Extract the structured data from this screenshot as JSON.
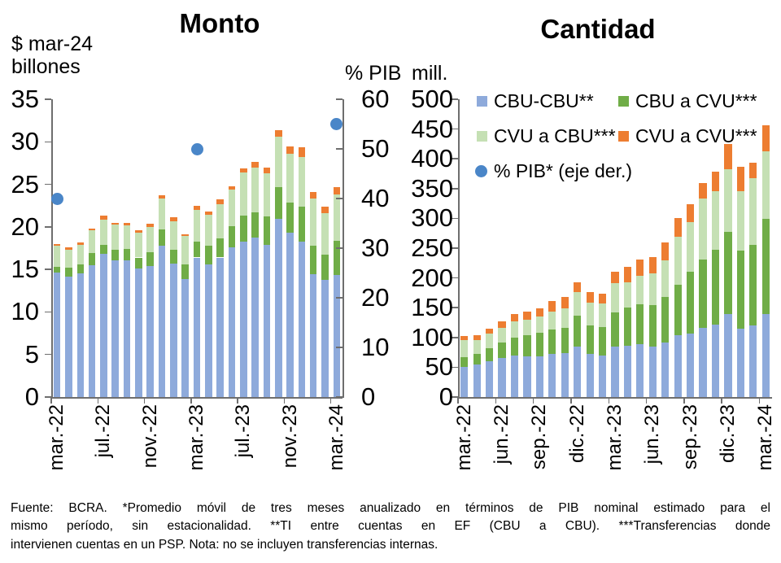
{
  "page": {
    "background": "#ffffff"
  },
  "colors": {
    "cbu_cbu": "#8EAADB",
    "cbu_a_cvu": "#70AD47",
    "cvu_a_cbu": "#C5E0B4",
    "cvu_a_cvu": "#ED7D31",
    "pib_dot": "#4A86C8",
    "axis": "#6E6E6E",
    "text": "#000000"
  },
  "legend": {
    "items": [
      {
        "label": "CBU-CBU**",
        "color": "#8EAADB",
        "shape": "square"
      },
      {
        "label": "CBU a CVU***",
        "color": "#70AD47",
        "shape": "square"
      },
      {
        "label": "CVU a CBU***",
        "color": "#C5E0B4",
        "shape": "square"
      },
      {
        "label": "CVU a CVU***",
        "color": "#ED7D31",
        "shape": "square"
      },
      {
        "label": "% PIB* (eje der.)",
        "color": "#4A86C8",
        "shape": "circle"
      }
    ]
  },
  "chart_data": [
    {
      "id": "monto",
      "type": "stacked-bar",
      "title": "Monto",
      "y_axis_unit": [
        "$ mar-24",
        "billones"
      ],
      "y2_axis_unit": "% PIB",
      "ylim": [
        0,
        35
      ],
      "y_ticks": [
        0,
        5,
        10,
        15,
        20,
        25,
        30,
        35
      ],
      "y2lim": [
        0,
        60
      ],
      "y2_ticks": [
        0,
        10,
        20,
        30,
        40,
        50,
        60
      ],
      "grid": false,
      "label_every": 4,
      "categories": [
        "mar.-22",
        "abr.-22",
        "may.-22",
        "jun.-22",
        "jul.-22",
        "ago.-22",
        "sep.-22",
        "oct.-22",
        "nov.-22",
        "dic.-22",
        "ene.-23",
        "feb.-23",
        "mar.-23",
        "abr.-23",
        "may.-23",
        "jun.-23",
        "jul.-23",
        "ago.-23",
        "sep.-23",
        "oct.-23",
        "nov.-23",
        "dic.-23",
        "ene.-24",
        "feb.-24",
        "mar.-24"
      ],
      "x_tick_labels": [
        "mar.-22",
        "jul.-22",
        "nov.-22",
        "mar.-23",
        "jul.-23",
        "nov.-23",
        "mar.-24"
      ],
      "series": [
        {
          "name": "CBU-CBU**",
          "color": "#8EAADB",
          "values": [
            14.6,
            14.2,
            14.5,
            15.5,
            16.8,
            16.1,
            16.1,
            15.1,
            15.4,
            17.8,
            15.7,
            13.9,
            16.4,
            15.6,
            16.4,
            17.6,
            18.3,
            18.7,
            17.9,
            20.9,
            19.3,
            18.3,
            14.4,
            13.8,
            14.3
          ]
        },
        {
          "name": "CBU a CVU***",
          "color": "#70AD47",
          "values": [
            0.7,
            1.0,
            1.1,
            1.4,
            1.1,
            1.2,
            1.3,
            1.3,
            1.6,
            1.9,
            1.6,
            1.7,
            1.9,
            2.2,
            2.2,
            2.5,
            3.0,
            3.0,
            3.3,
            3.8,
            3.6,
            4.1,
            3.4,
            2.9,
            4.1
          ]
        },
        {
          "name": "CVU a CBU***",
          "color": "#C5E0B4",
          "values": [
            2.5,
            2.1,
            2.3,
            2.7,
            2.9,
            3.0,
            2.8,
            2.9,
            3.0,
            3.6,
            3.4,
            3.3,
            3.7,
            3.6,
            4.1,
            4.3,
            5.1,
            5.3,
            5.1,
            5.9,
            5.7,
            5.8,
            5.5,
            4.9,
            5.4
          ]
        },
        {
          "name": "CVU a CVU***",
          "color": "#ED7D31",
          "values": [
            0.2,
            0.3,
            0.3,
            0.2,
            0.5,
            0.2,
            0.3,
            0.3,
            0.4,
            0.4,
            0.4,
            0.2,
            0.5,
            0.4,
            0.5,
            0.4,
            0.5,
            0.6,
            0.7,
            0.8,
            0.9,
            1.2,
            0.8,
            0.8,
            0.9
          ]
        }
      ],
      "dots": {
        "name": "% PIB* (eje der.)",
        "axis": "y2",
        "color": "#4A86C8",
        "points": [
          {
            "category": "mar.-22",
            "value": 40
          },
          {
            "category": "mar.-23",
            "value": 50
          },
          {
            "category": "mar.-24",
            "value": 55
          }
        ]
      }
    },
    {
      "id": "cantidad",
      "type": "stacked-bar",
      "title": "Cantidad",
      "y_axis_unit": [
        "mill."
      ],
      "ylim": [
        0,
        500
      ],
      "y_ticks": [
        0,
        50,
        100,
        150,
        200,
        250,
        300,
        350,
        400,
        450,
        500
      ],
      "grid": false,
      "label_every": 3,
      "categories": [
        "mar.-22",
        "abr.-22",
        "may.-22",
        "jun.-22",
        "jul.-22",
        "ago.-22",
        "sep.-22",
        "oct.-22",
        "nov.-22",
        "dic.-22",
        "ene.-23",
        "feb.-23",
        "mar.-23",
        "abr.-23",
        "may.-23",
        "jun.-23",
        "jul.-23",
        "ago.-23",
        "sep.-23",
        "oct.-23",
        "nov.-23",
        "dic.-23",
        "ene.-24",
        "feb.-24",
        "mar.-24"
      ],
      "x_tick_labels": [
        "mar.-22",
        "jun.-22",
        "sep.-22",
        "dic.-22",
        "mar.-23",
        "jun.-23",
        "sep.-23",
        "dic.-23",
        "mar.-24"
      ],
      "series": [
        {
          "name": "CBU-CBU**",
          "color": "#8EAADB",
          "values": [
            51,
            55,
            60,
            65,
            70,
            68,
            68,
            73,
            74,
            85,
            72,
            70,
            85,
            86,
            89,
            85,
            92,
            104,
            106,
            116,
            122,
            139,
            115,
            120,
            139
          ]
        },
        {
          "name": "CBU a CVU***",
          "color": "#70AD47",
          "values": [
            16,
            17,
            22,
            27,
            30,
            36,
            40,
            41,
            42,
            52,
            48,
            48,
            57,
            64,
            67,
            70,
            76,
            85,
            104,
            115,
            125,
            139,
            131,
            135,
            160
          ]
        },
        {
          "name": "CVU a CBU***",
          "color": "#C5E0B4",
          "values": [
            28,
            24,
            24,
            24,
            27,
            26,
            27,
            30,
            33,
            39,
            39,
            39,
            49,
            43,
            47,
            52,
            62,
            80,
            84,
            102,
            99,
            104,
            100,
            112,
            113
          ]
        },
        {
          "name": "CVU a CVU***",
          "color": "#ED7D31",
          "values": [
            7,
            8,
            9,
            11,
            12,
            13,
            14,
            17,
            19,
            17,
            17,
            17,
            19,
            26,
            28,
            28,
            30,
            31,
            30,
            26,
            32,
            43,
            40,
            27,
            44
          ]
        }
      ]
    }
  ],
  "footer": {
    "lines": [
      "Fuente: BCRA. *Promedio móvil de tres meses anualizado en términos de PIB nominal estimado para el",
      "mismo período, sin estacionalidad. **TI entre cuentas en EF (CBU a CBU). ***Transferencias donde",
      "intervienen cuentas en un PSP. Nota: no se incluyen transferencias internas."
    ]
  }
}
